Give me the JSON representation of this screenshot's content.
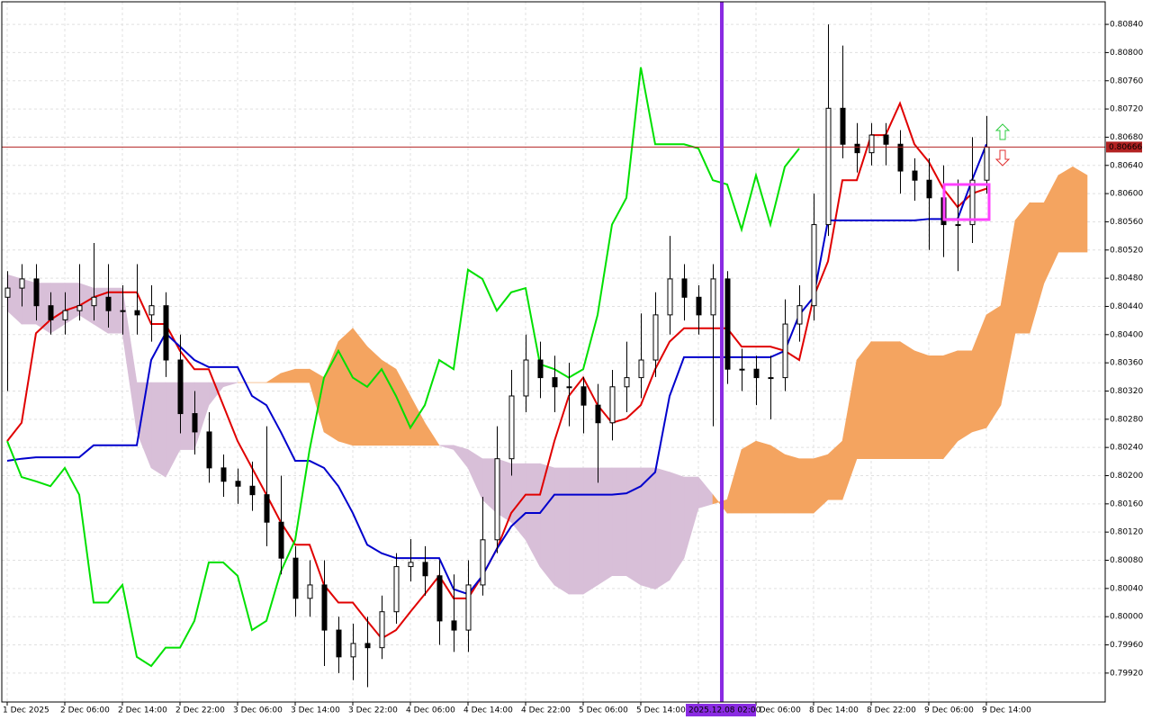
{
  "chart_data": {
    "type": "candlestick",
    "categories": [
      "1 Dec 2025",
      null,
      null,
      null,
      "2 Dec 06:00",
      null,
      null,
      null,
      "2 Dec 14:00",
      null,
      null,
      null,
      "2 Dec 22:00",
      null,
      null,
      null,
      "3 Dec 06:00",
      null,
      null,
      null,
      "3 Dec 14:00",
      null,
      null,
      null,
      "3 Dec 22:00",
      null,
      null,
      null,
      "4 Dec 06:00",
      null,
      null,
      null,
      "4 Dec 14:00",
      null,
      null,
      null,
      "4 Dec 22:00",
      null,
      null,
      null,
      "5 Dec 06:00",
      null,
      null,
      null,
      "5 Dec 14:00",
      null,
      null,
      null,
      "5 Dec 22:00",
      null,
      null,
      null,
      "8 Dec 06:00",
      null,
      null,
      null,
      "8 Dec 14:00",
      null,
      null,
      null,
      "8 Dec 22:00",
      null,
      null,
      null,
      "9 Dec 06:00",
      null,
      null,
      null,
      "9 Dec 14:00",
      null,
      null,
      null,
      null,
      null,
      null,
      null
    ],
    "open": [
      0.80453,
      0.80466,
      0.80479,
      0.80441,
      0.80421,
      0.80434,
      0.80441,
      0.80453,
      0.80434,
      0.80434,
      0.80428,
      0.80441,
      0.80364,
      0.80288,
      0.80262,
      0.80211,
      0.80192,
      0.80185,
      0.80173,
      0.80134,
      0.80083,
      0.80026,
      0.80045,
      0.79981,
      0.79943,
      0.79962,
      0.79956,
      0.80007,
      0.80071,
      0.80077,
      0.80058,
      0.79994,
      0.79981,
      0.80045,
      0.80109,
      0.80224,
      0.80313,
      0.80364,
      0.80339,
      0.80326,
      0.80326,
      0.803,
      0.80275,
      0.80326,
      0.80339,
      0.80364,
      0.80428,
      0.80479,
      0.80453,
      0.80428,
      0.80479,
      0.80351,
      0.80351,
      0.80339,
      0.80339,
      0.80415,
      0.80441,
      0.80556,
      0.80721,
      0.8067,
      0.80658,
      0.80683,
      0.8067,
      0.80632,
      0.80619,
      0.80594,
      0.80556,
      0.80556,
      0.80619,
      null,
      null,
      null,
      null,
      null,
      null,
      null
    ],
    "high": [
      0.8049,
      0.805,
      0.805,
      0.8046,
      0.8046,
      0.805,
      0.8053,
      0.805,
      0.8047,
      0.805,
      0.8047,
      0.8046,
      0.804,
      0.8032,
      0.8029,
      0.8023,
      0.8021,
      0.8022,
      0.8027,
      0.802,
      0.801,
      0.8008,
      0.8008,
      0.8,
      0.7999,
      0.8,
      0.8003,
      0.8009,
      0.8011,
      0.801,
      0.8008,
      0.8006,
      0.8008,
      0.8017,
      0.8027,
      0.8035,
      0.804,
      0.8039,
      0.8037,
      0.8036,
      0.8034,
      0.8033,
      0.8035,
      0.8039,
      0.8043,
      0.8046,
      0.8054,
      0.805,
      0.8047,
      0.805,
      0.8049,
      0.8038,
      0.8037,
      0.8037,
      0.8045,
      0.8047,
      0.806,
      0.8084,
      0.8081,
      0.807,
      0.807,
      0.807,
      0.8069,
      0.8065,
      0.8065,
      0.8064,
      0.8062,
      0.8068,
      0.8071,
      null,
      null,
      null,
      null,
      null,
      null,
      null
    ],
    "low": [
      0.8032,
      0.8044,
      0.8042,
      0.804,
      0.804,
      0.8042,
      0.8042,
      0.8041,
      0.804,
      0.804,
      0.8039,
      0.8034,
      0.8026,
      0.8023,
      0.8019,
      0.8017,
      0.8016,
      0.8015,
      0.801,
      0.8006,
      0.8,
      0.8,
      0.7993,
      0.7992,
      0.7991,
      0.799,
      0.7994,
      0.7999,
      0.8005,
      0.8003,
      0.7996,
      0.7995,
      0.7995,
      0.8003,
      0.8009,
      0.802,
      0.8029,
      0.8031,
      0.8029,
      0.8027,
      0.8026,
      0.8019,
      0.8025,
      0.8029,
      0.8031,
      0.8034,
      0.804,
      0.8042,
      0.804,
      0.8027,
      0.8033,
      0.8032,
      0.803,
      0.8028,
      0.8032,
      0.8039,
      0.8042,
      0.8054,
      0.8065,
      0.8063,
      0.8064,
      0.8064,
      0.806,
      0.8059,
      0.8052,
      0.8051,
      0.8049,
      0.8053,
      0.806,
      null,
      null,
      null,
      null,
      null,
      null,
      null
    ],
    "close": [
      0.80466,
      0.80479,
      0.80441,
      0.80421,
      0.80434,
      0.80441,
      0.80453,
      0.80434,
      0.80434,
      0.80428,
      0.80441,
      0.80364,
      0.80288,
      0.80262,
      0.80211,
      0.80192,
      0.80185,
      0.80173,
      0.80134,
      0.80083,
      0.80026,
      0.80045,
      0.79981,
      0.79943,
      0.79962,
      0.79956,
      0.80007,
      0.80071,
      0.80077,
      0.80058,
      0.79994,
      0.79981,
      0.80045,
      0.80109,
      0.80224,
      0.80313,
      0.80364,
      0.80339,
      0.80326,
      0.80326,
      0.803,
      0.80275,
      0.80326,
      0.80339,
      0.80364,
      0.80428,
      0.80479,
      0.80453,
      0.80428,
      0.80479,
      0.80351,
      0.80351,
      0.80339,
      0.80339,
      0.80415,
      0.80441,
      0.80556,
      0.80721,
      0.8067,
      0.80658,
      0.80683,
      0.8067,
      0.80632,
      0.80619,
      0.80594,
      0.80556,
      0.80556,
      0.80619,
      0.80666,
      null,
      null,
      null,
      null,
      null,
      null,
      null
    ],
    "bull_color": "#ffffff",
    "bear_color": "#000000",
    "series": [
      {
        "color": "#e00000",
        "values": [
          0.80249,
          0.80275,
          0.80402,
          0.80421,
          0.80434,
          0.80441,
          0.80453,
          0.8046,
          0.8046,
          0.8046,
          0.80415,
          0.80415,
          0.80377,
          0.80351,
          0.80351,
          0.803,
          0.80249,
          0.80211,
          0.80173,
          0.80134,
          0.80102,
          0.80102,
          0.80045,
          0.8002,
          0.8002,
          0.79994,
          0.79969,
          0.79981,
          0.80007,
          0.80032,
          0.80058,
          0.80026,
          0.80026,
          0.80058,
          0.80096,
          0.80147,
          0.80173,
          0.80173,
          0.80249,
          0.80313,
          0.80339,
          0.803,
          0.80275,
          0.80281,
          0.803,
          0.80351,
          0.8039,
          0.80409,
          0.80409,
          0.80409,
          0.80409,
          0.80383,
          0.80383,
          0.80383,
          0.80377,
          0.80364,
          0.80453,
          0.80504,
          0.80619,
          0.80619,
          0.80683,
          0.80683,
          0.80728,
          0.8067,
          0.80645,
          0.80607,
          0.80581,
          0.806,
          0.80607,
          null,
          null,
          null,
          null,
          null,
          null,
          null
        ]
      },
      {
        "color": "#0000cc",
        "values": [
          0.80221,
          0.80224,
          0.80226,
          0.80226,
          0.80226,
          0.80226,
          0.80243,
          0.80243,
          0.80243,
          0.80243,
          0.80364,
          0.80402,
          0.80383,
          0.80364,
          0.80354,
          0.80354,
          0.80354,
          0.80313,
          0.803,
          0.80262,
          0.80221,
          0.80221,
          0.80211,
          0.80185,
          0.80147,
          0.80102,
          0.8009,
          0.80083,
          0.80083,
          0.80083,
          0.80083,
          0.80039,
          0.80032,
          0.80058,
          0.80096,
          0.80128,
          0.80147,
          0.80147,
          0.80173,
          0.80173,
          0.80173,
          0.80173,
          0.80173,
          0.80175,
          0.80185,
          0.80205,
          0.80313,
          0.80368,
          0.80368,
          0.80368,
          0.80368,
          0.80368,
          0.80368,
          0.80368,
          0.80377,
          0.80428,
          0.80453,
          0.80562,
          0.80562,
          0.80562,
          0.80562,
          0.80562,
          0.80562,
          0.80562,
          0.80564,
          0.80564,
          0.80564,
          0.80619,
          0.8067,
          null,
          null,
          null,
          null,
          null,
          null,
          null
        ]
      },
      {
        "color": "#00e000",
        "values": [
          0.80249,
          0.80198,
          0.80192,
          0.80185,
          0.80211,
          0.80173,
          0.8002,
          0.8002,
          0.80045,
          0.79943,
          0.7993,
          0.79956,
          0.79956,
          0.79994,
          0.80077,
          0.80077,
          0.80058,
          0.79981,
          0.79994,
          0.80064,
          0.80109,
          0.80237,
          0.80339,
          0.80377,
          0.80339,
          0.80326,
          0.80351,
          0.80313,
          0.80268,
          0.803,
          0.80364,
          0.80351,
          0.80492,
          0.80479,
          0.80434,
          0.8046,
          0.80466,
          0.80358,
          0.80351,
          0.80339,
          0.80351,
          0.80428,
          0.80556,
          0.80594,
          0.80779,
          0.8067,
          0.8067,
          0.8067,
          0.80664,
          0.80619,
          0.80613,
          0.80549,
          0.80626,
          0.80556,
          0.80638,
          0.80664,
          null,
          null,
          null,
          null,
          null,
          null,
          null,
          null,
          null,
          null,
          null,
          null,
          null,
          null,
          null,
          null,
          null,
          null,
          null,
          null
        ]
      }
    ],
    "cloud": {
      "span_a": [
        0.80434,
        0.80415,
        0.80415,
        0.80402,
        0.80415,
        0.80428,
        0.80415,
        0.80402,
        0.80402,
        0.80262,
        0.80211,
        0.80198,
        0.80237,
        0.80237,
        0.803,
        0.80326,
        0.80332,
        0.80332,
        0.80332,
        0.80345,
        0.80351,
        0.80351,
        0.80339,
        0.8039,
        0.80409,
        0.80383,
        0.80364,
        0.80351,
        0.80313,
        0.80275,
        0.80243,
        0.80237,
        0.80211,
        0.80166,
        0.80147,
        0.80134,
        0.80109,
        0.80071,
        0.80045,
        0.80032,
        0.80032,
        0.80045,
        0.80058,
        0.80058,
        0.80045,
        0.80039,
        0.80052,
        0.80083,
        0.80154,
        0.8016,
        0.80166,
        0.80237,
        0.80249,
        0.80243,
        0.8023,
        0.80224,
        0.80224,
        0.8023,
        0.80249,
        0.80364,
        0.8039,
        0.8039,
        0.8039,
        0.80377,
        0.8037,
        0.8037,
        0.80377,
        0.80377,
        0.80428,
        0.80441,
        0.80562,
        0.80587,
        0.80587,
        0.80626,
        0.80638,
        0.80626
      ],
      "span_b": [
        0.80485,
        0.80479,
        0.80473,
        0.80473,
        0.80473,
        0.80473,
        0.80466,
        0.80466,
        0.80466,
        0.80332,
        0.80332,
        0.80332,
        0.80332,
        0.80332,
        0.80332,
        0.80332,
        0.80332,
        0.80332,
        0.80332,
        0.80332,
        0.80332,
        0.80332,
        0.80262,
        0.80249,
        0.80243,
        0.80243,
        0.80243,
        0.80243,
        0.80243,
        0.80243,
        0.80243,
        0.80243,
        0.80237,
        0.80224,
        0.80224,
        0.80217,
        0.80217,
        0.80217,
        0.80211,
        0.80211,
        0.80211,
        0.80211,
        0.80211,
        0.80211,
        0.80211,
        0.80211,
        0.80205,
        0.80198,
        0.80198,
        0.80173,
        0.80147,
        0.80147,
        0.80147,
        0.80147,
        0.80147,
        0.80147,
        0.80147,
        0.80166,
        0.80166,
        0.80224,
        0.80224,
        0.80224,
        0.80224,
        0.80224,
        0.80224,
        0.80224,
        0.80249,
        0.80262,
        0.80268,
        0.803,
        0.80402,
        0.80402,
        0.80473,
        0.80517,
        0.80517,
        0.80517
      ],
      "up_color": "#f4a460",
      "down_color": "#d8bfd8"
    },
    "last_price": 0.80666,
    "last_price_color": "#b22222",
    "cursor_label": "2025.12.08 02:00",
    "ylim": [
      0.79879,
      0.80872
    ],
    "yticks": [
      {
        "value": 0.8084,
        "label": "0.80840"
      },
      {
        "value": 0.808,
        "label": "0.80800"
      },
      {
        "value": 0.8076,
        "label": "0.80760"
      },
      {
        "value": 0.8072,
        "label": "0.80720"
      },
      {
        "value": 0.8068,
        "label": "0.80680"
      },
      {
        "value": 0.8064,
        "label": "0.80640"
      },
      {
        "value": 0.806,
        "label": "0.80600"
      },
      {
        "value": 0.8056,
        "label": "0.80560"
      },
      {
        "value": 0.8052,
        "label": "0.80520"
      },
      {
        "value": 0.8048,
        "label": "0.80480"
      },
      {
        "value": 0.8044,
        "label": "0.80440"
      },
      {
        "value": 0.804,
        "label": "0.80400"
      },
      {
        "value": 0.8036,
        "label": "0.80360"
      },
      {
        "value": 0.8032,
        "label": "0.80320"
      },
      {
        "value": 0.8028,
        "label": "0.80280"
      },
      {
        "value": 0.8024,
        "label": "0.80240"
      },
      {
        "value": 0.802,
        "label": "0.80200"
      },
      {
        "value": 0.8016,
        "label": "0.80160"
      },
      {
        "value": 0.8012,
        "label": "0.80120"
      },
      {
        "value": 0.8008,
        "label": "0.80080"
      },
      {
        "value": 0.8004,
        "label": "0.80040"
      },
      {
        "value": 0.8,
        "label": "0.80000"
      },
      {
        "value": 0.7996,
        "label": "0.79960"
      },
      {
        "value": 0.7992,
        "label": "0.79920"
      }
    ],
    "grid": true
  }
}
